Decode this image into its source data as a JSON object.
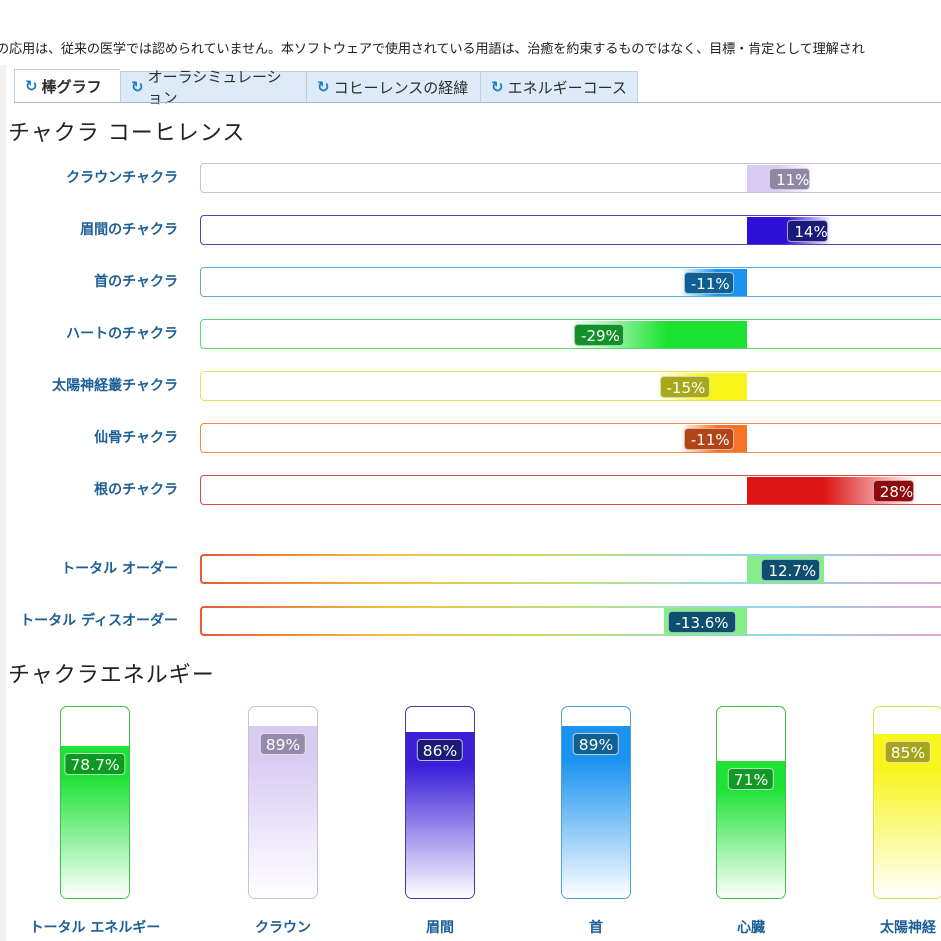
{
  "disclaimer": "の応用は、従来の医学では認められていません。本ソフトウェアで使用されている用語は、治癒を約束するものではなく、目標・肯定として理解され",
  "tabs": [
    {
      "label": "棒グラフ",
      "icon": "refresh-icon",
      "active": true
    },
    {
      "label": "オーラシミュレーション",
      "icon": "refresh-icon",
      "active": false
    },
    {
      "label": "コヒーレンスの経緯",
      "icon": "refresh-icon",
      "active": false
    },
    {
      "label": "エネルギーコース",
      "icon": "refresh-icon",
      "active": false
    }
  ],
  "coherence": {
    "title": "チャクラ コーヒレンス",
    "rows": [
      {
        "label": "クラウンチャクラ",
        "value": 11,
        "display": "11%",
        "color": "#d9ccf3",
        "label_color": "#8f87a4",
        "border": "#c9bfe0"
      },
      {
        "label": "眉間のチャクラ",
        "value": 14,
        "display": "14%",
        "color": "#2e0fd6",
        "label_color": "#1a1a7a",
        "border": "#5b3fb0"
      },
      {
        "label": "首のチャクラ",
        "value": -11,
        "display": "-11%",
        "color": "#1b93f0",
        "label_color": "#0f5f93",
        "border": "#5aa8de"
      },
      {
        "label": "ハートのチャクラ",
        "value": -29,
        "display": "-29%",
        "color": "#19e230",
        "label_color": "#12902a",
        "border": "#5bd86a"
      },
      {
        "label": "太陽神経叢チャクラ",
        "value": -15,
        "display": "-15%",
        "color": "#f7f51a",
        "label_color": "#a8a81b",
        "border": "#e8e05a"
      },
      {
        "label": "仙骨チャクラ",
        "value": -11,
        "display": "-11%",
        "color": "#f97326",
        "label_color": "#b24518",
        "border": "#f08a4a"
      },
      {
        "label": "根のチャクラ",
        "value": 28,
        "display": "28%",
        "color": "#dd1414",
        "label_color": "#8e0b0b",
        "border": "#d94a4a"
      }
    ],
    "totals": [
      {
        "label": "トータル オーダー",
        "value": 12.7,
        "display": "12.7%",
        "color": "#85ee88",
        "label_color": "#0d4f6e"
      },
      {
        "label": "トータル ディスオーダー",
        "value": -13.6,
        "display": "-13.6%",
        "color": "#85ee88",
        "label_color": "#0d4f6e"
      }
    ]
  },
  "energy": {
    "title": "チャクラエネルギー",
    "columns": [
      {
        "label": "トータル エネルギー",
        "value": 78.7,
        "display": "78.7%",
        "color": "#1ee236",
        "label_color": "#0c9a20",
        "border": "#37c446"
      },
      {
        "label": "クラウン",
        "value": 89,
        "display": "89%",
        "color": "#d9ccf3",
        "label_color": "#958aa9",
        "border": "#c9c0dc"
      },
      {
        "label": "眉間",
        "value": 86,
        "display": "86%",
        "color": "#3a1ed8",
        "label_color": "#1c1a78",
        "border": "#4a35a8"
      },
      {
        "label": "首",
        "value": 89,
        "display": "89%",
        "color": "#1b93f0",
        "label_color": "#105f93",
        "border": "#4aa0da"
      },
      {
        "label": "心臓",
        "value": 71,
        "display": "71%",
        "color": "#1ee236",
        "label_color": "#119a24",
        "border": "#37c446"
      },
      {
        "label": "太陽神経",
        "value": 85,
        "display": "85%",
        "color": "#f7f51a",
        "label_color": "#a7a51c",
        "border": "#e0dc55"
      }
    ]
  }
}
